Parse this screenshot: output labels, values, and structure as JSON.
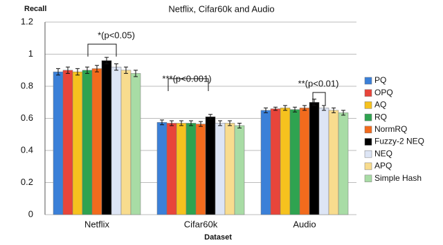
{
  "chart_data": {
    "type": "bar",
    "title": "Netflix, Cifar60k and Audio",
    "y_label": "Recall",
    "x_label": "Dataset",
    "categories": [
      "Netflix",
      "Cifar60k",
      "Audio"
    ],
    "series": [
      {
        "name": "PQ",
        "color": "#3b80d8",
        "values": [
          0.89,
          0.575,
          0.65
        ],
        "errors": [
          0.02,
          0.015,
          0.015
        ]
      },
      {
        "name": "OPQ",
        "color": "#e8453a",
        "values": [
          0.9,
          0.57,
          0.66
        ],
        "errors": [
          0.02,
          0.015,
          0.01
        ]
      },
      {
        "name": "AQ",
        "color": "#f6c21e",
        "values": [
          0.89,
          0.57,
          0.665
        ],
        "errors": [
          0.02,
          0.015,
          0.015
        ]
      },
      {
        "name": "RQ",
        "color": "#2fa350",
        "values": [
          0.9,
          0.57,
          0.655
        ],
        "errors": [
          0.02,
          0.015,
          0.015
        ]
      },
      {
        "name": "NormRQ",
        "color": "#f26b1d",
        "values": [
          0.91,
          0.565,
          0.665
        ],
        "errors": [
          0.02,
          0.015,
          0.015
        ]
      },
      {
        "name": "Fuzzy-2 NEQ",
        "color": "#000000",
        "values": [
          0.96,
          0.61,
          0.7
        ],
        "errors": [
          0.02,
          0.015,
          0.02
        ]
      },
      {
        "name": "NEQ",
        "color": "#dde5f5",
        "values": [
          0.92,
          0.57,
          0.665
        ],
        "errors": [
          0.02,
          0.015,
          0.015
        ]
      },
      {
        "name": "APQ",
        "color": "#f8dc8e",
        "values": [
          0.9,
          0.57,
          0.65
        ],
        "errors": [
          0.02,
          0.015,
          0.015
        ]
      },
      {
        "name": "Simple Hash",
        "color": "#a8dca5",
        "values": [
          0.88,
          0.555,
          0.635
        ],
        "errors": [
          0.02,
          0.015,
          0.015
        ]
      }
    ],
    "annotations": [
      "*(p<0.05)",
      "***(p<0.001)",
      "**(p<0.01)"
    ],
    "ylim": [
      0,
      1.2
    ],
    "yticks": [
      0,
      0.2,
      0.4,
      0.6,
      0.8,
      1,
      1.2
    ],
    "grid": true
  }
}
